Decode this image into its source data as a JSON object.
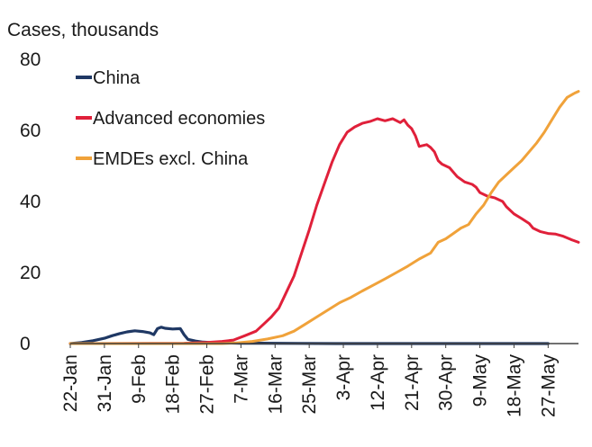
{
  "chart_data": {
    "type": "line",
    "title": "",
    "ylabel": "Cases, thousands",
    "xlabel": "",
    "ylim": [
      0,
      80
    ],
    "yticks": [
      0,
      20,
      40,
      60,
      80
    ],
    "grid": false,
    "legend_position": "top-left",
    "x_dates": [
      "22-Jan",
      "31-Jan",
      "9-Feb",
      "18-Feb",
      "27-Feb",
      "7-Mar",
      "16-Mar",
      "25-Mar",
      "3-Apr",
      "12-Apr",
      "21-Apr",
      "30-Apr",
      "9-May",
      "18-May",
      "27-May"
    ],
    "series": [
      {
        "name": "China",
        "color": "#1f3864",
        "points": [
          [
            0,
            0
          ],
          [
            3,
            0.3
          ],
          [
            6,
            0.8
          ],
          [
            9,
            1.5
          ],
          [
            11,
            2.2
          ],
          [
            13,
            2.8
          ],
          [
            15,
            3.3
          ],
          [
            17,
            3.6
          ],
          [
            19,
            3.4
          ],
          [
            21,
            3.0
          ],
          [
            22,
            2.5
          ],
          [
            23,
            4.2
          ],
          [
            24,
            4.6
          ],
          [
            25,
            4.3
          ],
          [
            27,
            4.1
          ],
          [
            29,
            4.2
          ],
          [
            30,
            2.5
          ],
          [
            31,
            1.2
          ],
          [
            33,
            0.7
          ],
          [
            35,
            0.4
          ],
          [
            37,
            0.3
          ],
          [
            40,
            0.2
          ],
          [
            45,
            0.1
          ],
          [
            50,
            0.1
          ],
          [
            60,
            0.05
          ],
          [
            70,
            0
          ],
          [
            100,
            0
          ],
          [
            120,
            0
          ],
          [
            126,
            0
          ]
        ]
      },
      {
        "name": "Advanced economies",
        "color": "#e0203a",
        "points": [
          [
            0,
            0
          ],
          [
            30,
            0.1
          ],
          [
            36,
            0.3
          ],
          [
            40,
            0.6
          ],
          [
            43,
            1.0
          ],
          [
            46,
            2.2
          ],
          [
            49,
            3.5
          ],
          [
            51,
            5.5
          ],
          [
            53,
            7.5
          ],
          [
            55,
            10
          ],
          [
            57,
            14.5
          ],
          [
            59,
            19
          ],
          [
            61,
            25.5
          ],
          [
            63,
            32
          ],
          [
            65,
            39
          ],
          [
            67,
            45
          ],
          [
            69,
            51
          ],
          [
            71,
            56
          ],
          [
            73,
            59.5
          ],
          [
            75,
            61
          ],
          [
            77,
            62
          ],
          [
            79,
            62.5
          ],
          [
            81,
            63.3
          ],
          [
            83,
            62.7
          ],
          [
            85,
            63.3
          ],
          [
            87,
            62.2
          ],
          [
            88,
            63
          ],
          [
            89,
            61.5
          ],
          [
            90,
            60.5
          ],
          [
            91,
            58.5
          ],
          [
            92,
            55.5
          ],
          [
            94,
            56
          ],
          [
            95,
            55.2
          ],
          [
            96,
            54
          ],
          [
            97,
            51.5
          ],
          [
            98,
            50.5
          ],
          [
            100,
            49.5
          ],
          [
            102,
            47
          ],
          [
            104,
            45.5
          ],
          [
            106,
            44.8
          ],
          [
            107,
            44
          ],
          [
            108,
            42.5
          ],
          [
            110,
            41.5
          ],
          [
            112,
            41
          ],
          [
            114,
            40
          ],
          [
            115,
            38.5
          ],
          [
            117,
            36.5
          ],
          [
            119,
            35.2
          ],
          [
            121,
            33.8
          ],
          [
            122,
            32.5
          ],
          [
            124,
            31.5
          ],
          [
            126,
            31
          ],
          [
            128,
            30.8
          ],
          [
            130,
            30.2
          ],
          [
            132,
            29.3
          ],
          [
            134,
            28.5
          ]
        ]
      },
      {
        "name": "EMDEs excl. China",
        "color": "#f0a23a",
        "points": [
          [
            0,
            0
          ],
          [
            40,
            0
          ],
          [
            44,
            0.2
          ],
          [
            48,
            0.6
          ],
          [
            52,
            1.3
          ],
          [
            56,
            2.2
          ],
          [
            59,
            3.5
          ],
          [
            62,
            5.5
          ],
          [
            65,
            7.5
          ],
          [
            68,
            9.5
          ],
          [
            71,
            11.5
          ],
          [
            74,
            13
          ],
          [
            77,
            14.8
          ],
          [
            80,
            16.5
          ],
          [
            83,
            18.2
          ],
          [
            86,
            20
          ],
          [
            89,
            21.8
          ],
          [
            92,
            23.8
          ],
          [
            95,
            25.5
          ],
          [
            97,
            28.5
          ],
          [
            99,
            29.5
          ],
          [
            101,
            31
          ],
          [
            103,
            32.5
          ],
          [
            105,
            33.5
          ],
          [
            107,
            36.5
          ],
          [
            109,
            39
          ],
          [
            111,
            42.5
          ],
          [
            113,
            45.5
          ],
          [
            115,
            47.5
          ],
          [
            117,
            49.5
          ],
          [
            119,
            51.5
          ],
          [
            121,
            54
          ],
          [
            123,
            56.5
          ],
          [
            125,
            59.5
          ],
          [
            127,
            63
          ],
          [
            129,
            66.5
          ],
          [
            131,
            69.3
          ],
          [
            133,
            70.5
          ],
          [
            134,
            71
          ]
        ]
      }
    ]
  }
}
